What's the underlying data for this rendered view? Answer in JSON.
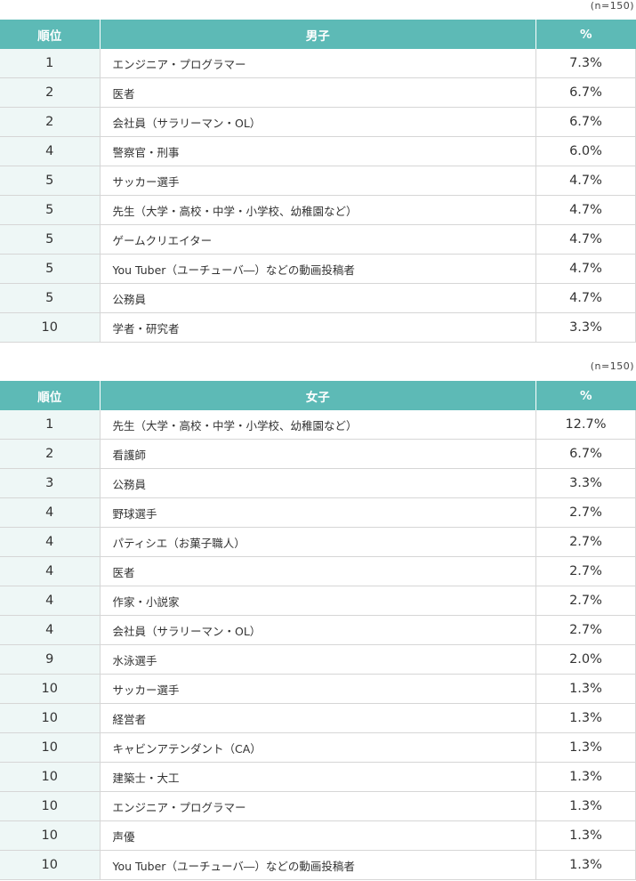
{
  "male": {
    "note": "(n=150)",
    "headers": {
      "rank": "順位",
      "job": "男子",
      "pct": "%"
    },
    "rows": [
      {
        "rank": "1",
        "job": "エンジニア・プログラマー",
        "pct": "7.3%"
      },
      {
        "rank": "2",
        "job": "医者",
        "pct": "6.7%"
      },
      {
        "rank": "2",
        "job": "会社員（サラリーマン・OL）",
        "pct": "6.7%"
      },
      {
        "rank": "4",
        "job": "警察官・刑事",
        "pct": "6.0%"
      },
      {
        "rank": "5",
        "job": "サッカー選手",
        "pct": "4.7%"
      },
      {
        "rank": "5",
        "job": "先生（大学・高校・中学・小学校、幼稚園など）",
        "pct": "4.7%"
      },
      {
        "rank": "5",
        "job": "ゲームクリエイター",
        "pct": "4.7%"
      },
      {
        "rank": "5",
        "job": "You Tuber（ユーチューバ―）などの動画投稿者",
        "pct": "4.7%"
      },
      {
        "rank": "5",
        "job": "公務員",
        "pct": "4.7%"
      },
      {
        "rank": "10",
        "job": "学者・研究者",
        "pct": "3.3%"
      }
    ]
  },
  "female": {
    "note": "(n=150)",
    "headers": {
      "rank": "順位",
      "job": "女子",
      "pct": "%"
    },
    "rows": [
      {
        "rank": "1",
        "job": "先生（大学・高校・中学・小学校、幼稚園など）",
        "pct": "12.7%"
      },
      {
        "rank": "2",
        "job": "看護師",
        "pct": "6.7%"
      },
      {
        "rank": "3",
        "job": "公務員",
        "pct": "3.3%"
      },
      {
        "rank": "4",
        "job": "野球選手",
        "pct": "2.7%"
      },
      {
        "rank": "4",
        "job": "パティシエ（お菓子職人）",
        "pct": "2.7%"
      },
      {
        "rank": "4",
        "job": "医者",
        "pct": "2.7%"
      },
      {
        "rank": "4",
        "job": "作家・小説家",
        "pct": "2.7%"
      },
      {
        "rank": "4",
        "job": "会社員（サラリーマン・OL）",
        "pct": "2.7%"
      },
      {
        "rank": "9",
        "job": "水泳選手",
        "pct": "2.0%"
      },
      {
        "rank": "10",
        "job": "サッカー選手",
        "pct": "1.3%"
      },
      {
        "rank": "10",
        "job": "経営者",
        "pct": "1.3%"
      },
      {
        "rank": "10",
        "job": "キャビンアテンダント（CA）",
        "pct": "1.3%"
      },
      {
        "rank": "10",
        "job": "建築士・大工",
        "pct": "1.3%"
      },
      {
        "rank": "10",
        "job": "エンジニア・プログラマー",
        "pct": "1.3%"
      },
      {
        "rank": "10",
        "job": "声優",
        "pct": "1.3%"
      },
      {
        "rank": "10",
        "job": "You Tuber（ユーチューバ―）などの動画投稿者",
        "pct": "1.3%"
      }
    ]
  },
  "colors": {
    "header_bg": "#5dbab6",
    "rank_bg": "#eef7f6",
    "border": "#d6d6d6"
  }
}
